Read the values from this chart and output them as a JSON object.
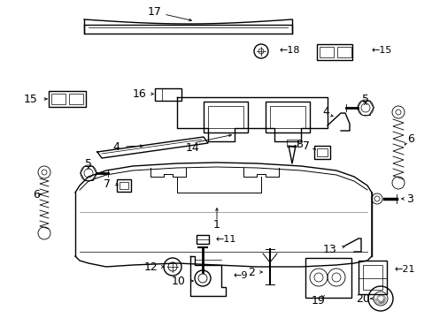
{
  "background_color": "#ffffff",
  "line_color": "#000000",
  "text_color": "#000000",
  "fig_width": 4.89,
  "fig_height": 3.6,
  "dpi": 100
}
